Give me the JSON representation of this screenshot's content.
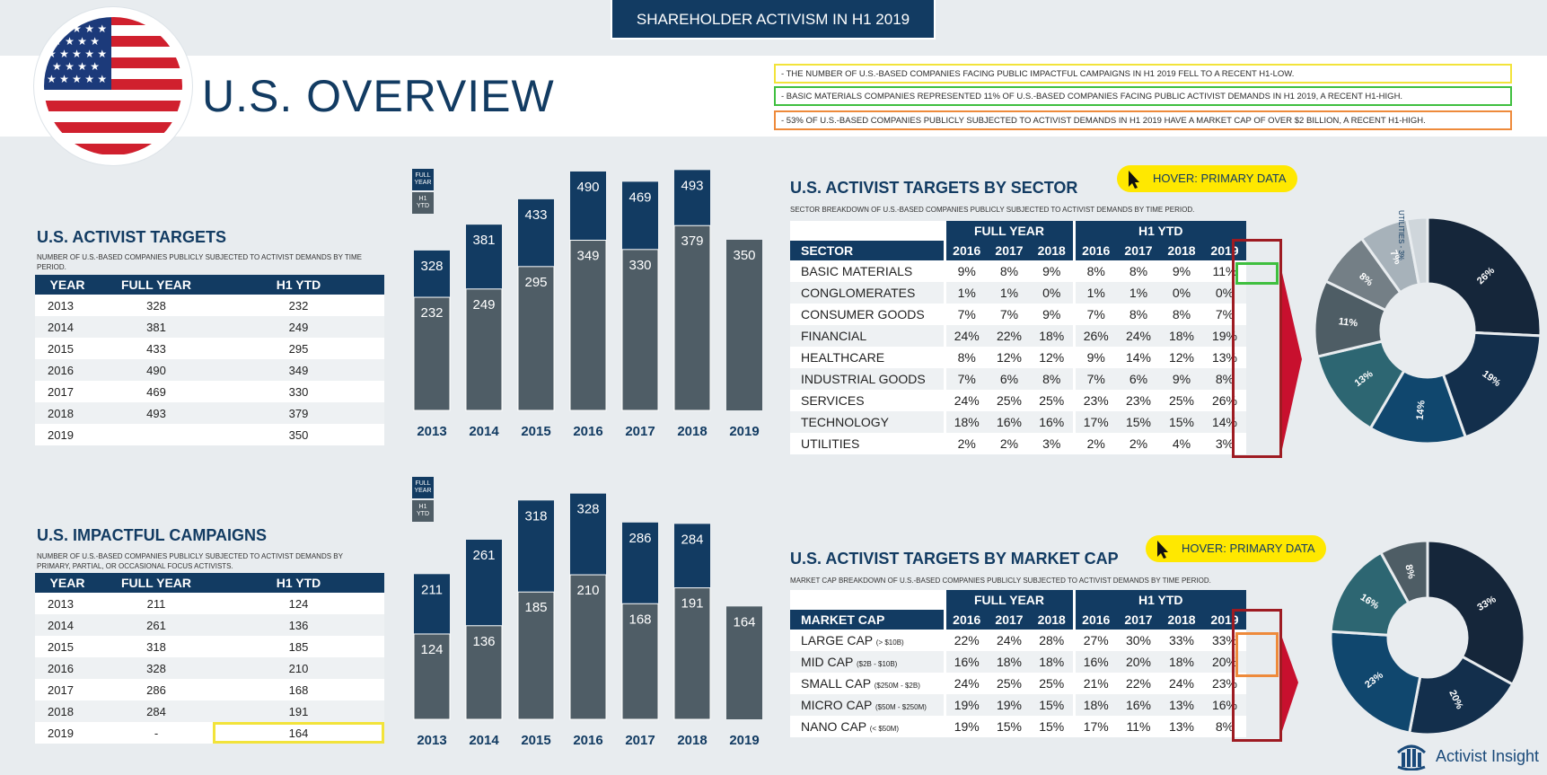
{
  "banner": "SHAREHOLDER ACTIVISM IN H1 2019",
  "title": "U.S. OVERVIEW",
  "notes": [
    {
      "text": "- THE NUMBER OF U.S.-BASED COMPANIES FACING PUBLIC IMPACTFUL CAMPAIGNS IN H1 2019 FELL TO A RECENT H1-LOW.",
      "color": "#f2e33a"
    },
    {
      "text": "- BASIC MATERIALS COMPANIES REPRESENTED 11% OF U.S.-BASED COMPANIES FACING PUBLIC ACTIVIST DEMANDS IN H1 2019, A RECENT H1-HIGH.",
      "color": "#3fbf3f"
    },
    {
      "text": "- 53% OF U.S.-BASED COMPANIES PUBLICLY SUBJECTED TO ACTIVIST DEMANDS IN H1 2019 HAVE A MARKET CAP OF OVER $2 BILLION, A RECENT H1-HIGH.",
      "color": "#ee8a3b"
    }
  ],
  "legend": {
    "full": "FULL YEAR",
    "h1": "H1 YTD"
  },
  "targets": {
    "title": "U.S. ACTIVIST TARGETS",
    "subtitle": "NUMBER OF U.S.-BASED COMPANIES PUBLICLY SUBJECTED TO ACTIVIST DEMANDS BY TIME PERIOD.",
    "headers": [
      "YEAR",
      "FULL YEAR",
      "H1 YTD"
    ],
    "rows": [
      [
        "2013",
        "328",
        "232"
      ],
      [
        "2014",
        "381",
        "249"
      ],
      [
        "2015",
        "433",
        "295"
      ],
      [
        "2016",
        "490",
        "349"
      ],
      [
        "2017",
        "469",
        "330"
      ],
      [
        "2018",
        "493",
        "379"
      ],
      [
        "2019",
        "",
        "350"
      ]
    ]
  },
  "campaigns": {
    "title": "U.S. IMPACTFUL CAMPAIGNS",
    "subtitle": "NUMBER OF U.S.-BASED COMPANIES PUBLICLY SUBJECTED TO ACTIVIST DEMANDS BY PRIMARY, PARTIAL, OR OCCASIONAL FOCUS ACTIVISTS.",
    "headers": [
      "YEAR",
      "FULL YEAR",
      "H1 YTD"
    ],
    "rows": [
      [
        "2013",
        "211",
        "124"
      ],
      [
        "2014",
        "261",
        "136"
      ],
      [
        "2015",
        "318",
        "185"
      ],
      [
        "2016",
        "328",
        "210"
      ],
      [
        "2017",
        "286",
        "168"
      ],
      [
        "2018",
        "284",
        "191"
      ],
      [
        "2019",
        "-",
        "164"
      ]
    ]
  },
  "sector": {
    "title": "U.S. ACTIVIST TARGETS BY SECTOR",
    "subtitle": "SECTOR BREAKDOWN OF U.S.-BASED COMPANIES PUBLICLY SUBJECTED TO ACTIVIST DEMANDS BY TIME PERIOD.",
    "hover": "HOVER: PRIMARY DATA",
    "group_full": "FULL YEAR",
    "group_h1": "H1 YTD",
    "headers": [
      "SECTOR",
      "2016",
      "2017",
      "2018",
      "2016",
      "2017",
      "2018",
      "2019"
    ],
    "rows": [
      [
        "BASIC MATERIALS",
        "9%",
        "8%",
        "9%",
        "8%",
        "8%",
        "9%",
        "11%"
      ],
      [
        "CONGLOMERATES",
        "1%",
        "1%",
        "0%",
        "1%",
        "1%",
        "0%",
        "0%"
      ],
      [
        "CONSUMER GOODS",
        "7%",
        "7%",
        "9%",
        "7%",
        "8%",
        "8%",
        "7%"
      ],
      [
        "FINANCIAL",
        "24%",
        "22%",
        "18%",
        "26%",
        "24%",
        "18%",
        "19%"
      ],
      [
        "HEALTHCARE",
        "8%",
        "12%",
        "12%",
        "9%",
        "14%",
        "12%",
        "13%"
      ],
      [
        "INDUSTRIAL GOODS",
        "7%",
        "6%",
        "8%",
        "7%",
        "6%",
        "9%",
        "8%"
      ],
      [
        "SERVICES",
        "24%",
        "25%",
        "25%",
        "23%",
        "23%",
        "25%",
        "26%"
      ],
      [
        "TECHNOLOGY",
        "18%",
        "16%",
        "16%",
        "17%",
        "15%",
        "15%",
        "14%"
      ],
      [
        "UTILITIES",
        "2%",
        "2%",
        "3%",
        "2%",
        "2%",
        "4%",
        "3%"
      ]
    ]
  },
  "marketcap": {
    "title": "U.S. ACTIVIST TARGETS BY MARKET CAP",
    "subtitle": "MARKET CAP BREAKDOWN OF U.S.-BASED COMPANIES PUBLICLY SUBJECTED TO ACTIVIST DEMANDS BY TIME PERIOD.",
    "hover": "HOVER: PRIMARY DATA",
    "group_full": "FULL YEAR",
    "group_h1": "H1 YTD",
    "headers": [
      "MARKET CAP",
      "2016",
      "2017",
      "2018",
      "2016",
      "2017",
      "2018",
      "2019"
    ],
    "rows": [
      [
        "LARGE CAP",
        "(> $10B)",
        "22%",
        "24%",
        "28%",
        "27%",
        "30%",
        "33%",
        "33%"
      ],
      [
        "MID CAP",
        "($2B - $10B)",
        "16%",
        "18%",
        "18%",
        "16%",
        "20%",
        "18%",
        "20%"
      ],
      [
        "SMALL CAP",
        "($250M - $2B)",
        "24%",
        "25%",
        "25%",
        "21%",
        "22%",
        "24%",
        "23%"
      ],
      [
        "MICRO CAP",
        "($50M - $250M)",
        "19%",
        "19%",
        "15%",
        "18%",
        "16%",
        "13%",
        "16%"
      ],
      [
        "NANO CAP",
        "(< $50M)",
        "19%",
        "15%",
        "15%",
        "17%",
        "11%",
        "13%",
        "8%"
      ]
    ]
  },
  "brand": "Activist Insight",
  "chart_data": [
    {
      "type": "bar",
      "title": "U.S. ACTIVIST TARGETS",
      "categories": [
        "2013",
        "2014",
        "2015",
        "2016",
        "2017",
        "2018",
        "2019"
      ],
      "series": [
        {
          "name": "FULL YEAR",
          "values": [
            328,
            381,
            433,
            490,
            469,
            493,
            null
          ],
          "color": "#123b62"
        },
        {
          "name": "H1 YTD",
          "values": [
            232,
            249,
            295,
            349,
            330,
            379,
            350
          ],
          "color": "#4f5d66"
        }
      ],
      "ylim": [
        0,
        500
      ]
    },
    {
      "type": "bar",
      "title": "U.S. IMPACTFUL CAMPAIGNS",
      "categories": [
        "2013",
        "2014",
        "2015",
        "2016",
        "2017",
        "2018",
        "2019"
      ],
      "series": [
        {
          "name": "FULL YEAR",
          "values": [
            211,
            261,
            318,
            328,
            286,
            284,
            null
          ],
          "color": "#123b62"
        },
        {
          "name": "H1 YTD",
          "values": [
            124,
            136,
            185,
            210,
            168,
            191,
            164
          ],
          "color": "#4f5d66"
        }
      ],
      "ylim": [
        0,
        330
      ]
    },
    {
      "type": "pie",
      "title": "U.S. ACTIVIST TARGETS BY SECTOR (H1 2019)",
      "labels": [
        "SERVICES",
        "FINANCIAL",
        "TECHNOLOGY",
        "HEALTHCARE",
        "BASIC MATERIALS",
        "INDUSTRIAL GOODS",
        "CONSUMER GOODS",
        "UTILITIES"
      ],
      "values": [
        26,
        19,
        14,
        13,
        11,
        8,
        7,
        3
      ],
      "value_labels": [
        "26%",
        "19%",
        "14%",
        "13%",
        "11%",
        "8%",
        "7%",
        "3%"
      ],
      "utilities_label": "UTILITIES - 3%",
      "colors": [
        "#15263a",
        "#132f4c",
        "#10476e",
        "#2d6672",
        "#4e5d65",
        "#747f86",
        "#a7b2ba",
        "#cfd6db"
      ]
    },
    {
      "type": "pie",
      "title": "U.S. ACTIVIST TARGETS BY MARKET CAP (H1 2019)",
      "labels": [
        "LARGE CAP",
        "MID CAP",
        "SMALL CAP",
        "MICRO CAP",
        "NANO CAP"
      ],
      "values": [
        33,
        20,
        23,
        16,
        8
      ],
      "value_labels": [
        "33%",
        "20%",
        "23%",
        "16%",
        "8%"
      ],
      "colors": [
        "#15263a",
        "#132f4c",
        "#10476e",
        "#2d6672",
        "#4e5d65"
      ]
    }
  ]
}
